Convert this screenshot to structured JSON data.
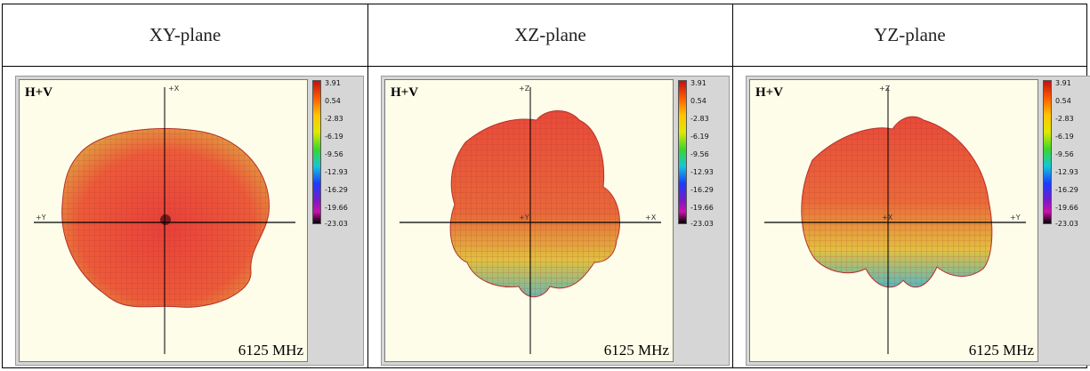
{
  "headers": [
    "XY-plane",
    "XZ-plane",
    "YZ-plane"
  ],
  "panels": [
    {
      "mode_label": "H+V",
      "frequency": "6125 MHz",
      "axis_labels": [
        "+X",
        "+Y"
      ],
      "colorbar_ticks": [
        "3.91",
        "0.54",
        "-2.83",
        "-6.19",
        "-9.56",
        "-12.93",
        "-16.29",
        "-19.66",
        "-23.03"
      ]
    },
    {
      "mode_label": "H+V",
      "frequency": "6125 MHz",
      "axis_labels": [
        "+Z",
        "+Y",
        "+X"
      ],
      "colorbar_ticks": [
        "3.91",
        "0.54",
        "-2.83",
        "-6.19",
        "-9.56",
        "-12.93",
        "-16.29",
        "-19.66",
        "-23.03"
      ]
    },
    {
      "mode_label": "H+V",
      "frequency": "6125 MHz",
      "axis_labels": [
        "+Z",
        "+X",
        "+Y"
      ],
      "colorbar_ticks": [
        "3.91",
        "0.54",
        "-2.83",
        "-6.19",
        "-9.56",
        "-12.93",
        "-16.29",
        "-19.66",
        "-23.03"
      ]
    }
  ],
  "colorbar_colors": [
    "#c21010",
    "#ff5a00",
    "#ffc400",
    "#dfe800",
    "#39d82c",
    "#13c6d8",
    "#1a3cff",
    "#7a18c8",
    "#000000"
  ],
  "pattern_color": "#e4443a"
}
